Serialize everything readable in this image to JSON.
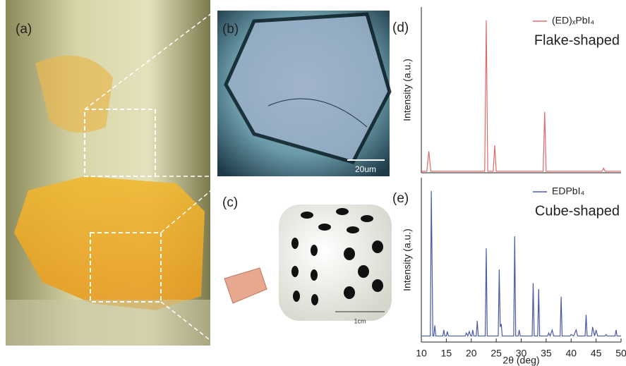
{
  "photos": {
    "a": {
      "label": "(a)"
    },
    "b": {
      "label": "(b)",
      "scale_bar": "20um"
    },
    "c": {
      "label": "(c)",
      "scale_bar": "1cm"
    }
  },
  "chart_data": [
    {
      "type": "line",
      "panel_label": "(d)",
      "y_label": "Intensity (a.u.)",
      "annotation": "Flake-shaped",
      "xlim": [
        10,
        50
      ],
      "ylim": [
        0,
        105
      ],
      "legend": "upper right",
      "x": [
        10,
        11.1,
        11.5,
        11.9,
        22.7,
        23,
        23.3,
        24.4,
        24.7,
        25.0,
        34.4,
        34.7,
        35.0,
        46.2,
        46.5,
        46.8,
        50
      ],
      "series": [
        {
          "name": "(ED)ₓPbI₄",
          "color": "#e06a6a",
          "values": [
            1,
            1,
            14,
            1,
            1,
            100,
            1,
            1,
            18,
            1,
            1,
            40,
            1,
            1,
            3,
            1,
            1
          ]
        }
      ]
    },
    {
      "type": "line",
      "panel_label": "(e)",
      "y_label": "Intensity (a.u.)",
      "annotation": "Cube-shaped",
      "x_label": "2θ (deg)",
      "xlim": [
        10,
        50
      ],
      "ylim": [
        0,
        105
      ],
      "xticks": [
        10,
        15,
        20,
        25,
        30,
        35,
        40,
        45,
        50
      ],
      "legend": "upper right",
      "x": [
        10,
        11.8,
        12,
        12.3,
        12.5,
        12.7,
        12.9,
        14.3,
        14.5,
        14.7,
        15.0,
        15.2,
        15.4,
        18.8,
        19,
        19.3,
        19.6,
        19.9,
        20.1,
        20.3,
        20.5,
        21.0,
        21.2,
        21.4,
        22.8,
        23,
        23.2,
        25.4,
        25.6,
        25.8,
        26.0,
        26.2,
        28.5,
        28.7,
        28.9,
        29.4,
        29.6,
        29.8,
        32.2,
        32.4,
        32.6,
        33.3,
        33.5,
        33.7,
        35.3,
        35.5,
        35.8,
        36.2,
        36.5,
        37.8,
        38,
        38.2,
        39.8,
        40,
        40.5,
        41,
        41.3,
        42.8,
        43,
        43.2,
        44.1,
        44.3,
        44.7,
        45,
        45.3,
        46.8,
        47,
        47.2,
        48.8,
        49,
        49.2,
        50
      ],
      "series": [
        {
          "name": "EDPbI₄",
          "color": "#4a5aa8",
          "values": [
            4,
            4,
            100,
            4,
            4,
            11,
            4,
            4,
            8,
            4,
            4,
            7,
            4,
            4,
            6,
            4,
            7,
            4,
            4,
            8,
            4,
            4,
            14,
            4,
            4,
            62,
            4,
            4,
            48,
            10,
            12,
            4,
            4,
            70,
            4,
            4,
            8,
            4,
            4,
            39,
            4,
            4,
            35,
            4,
            4,
            6,
            4,
            8,
            4,
            4,
            30,
            4,
            4,
            5,
            4,
            8,
            4,
            4,
            18,
            4,
            4,
            10,
            4,
            8,
            4,
            4,
            5,
            4,
            4,
            8,
            4,
            4
          ]
        }
      ]
    }
  ]
}
